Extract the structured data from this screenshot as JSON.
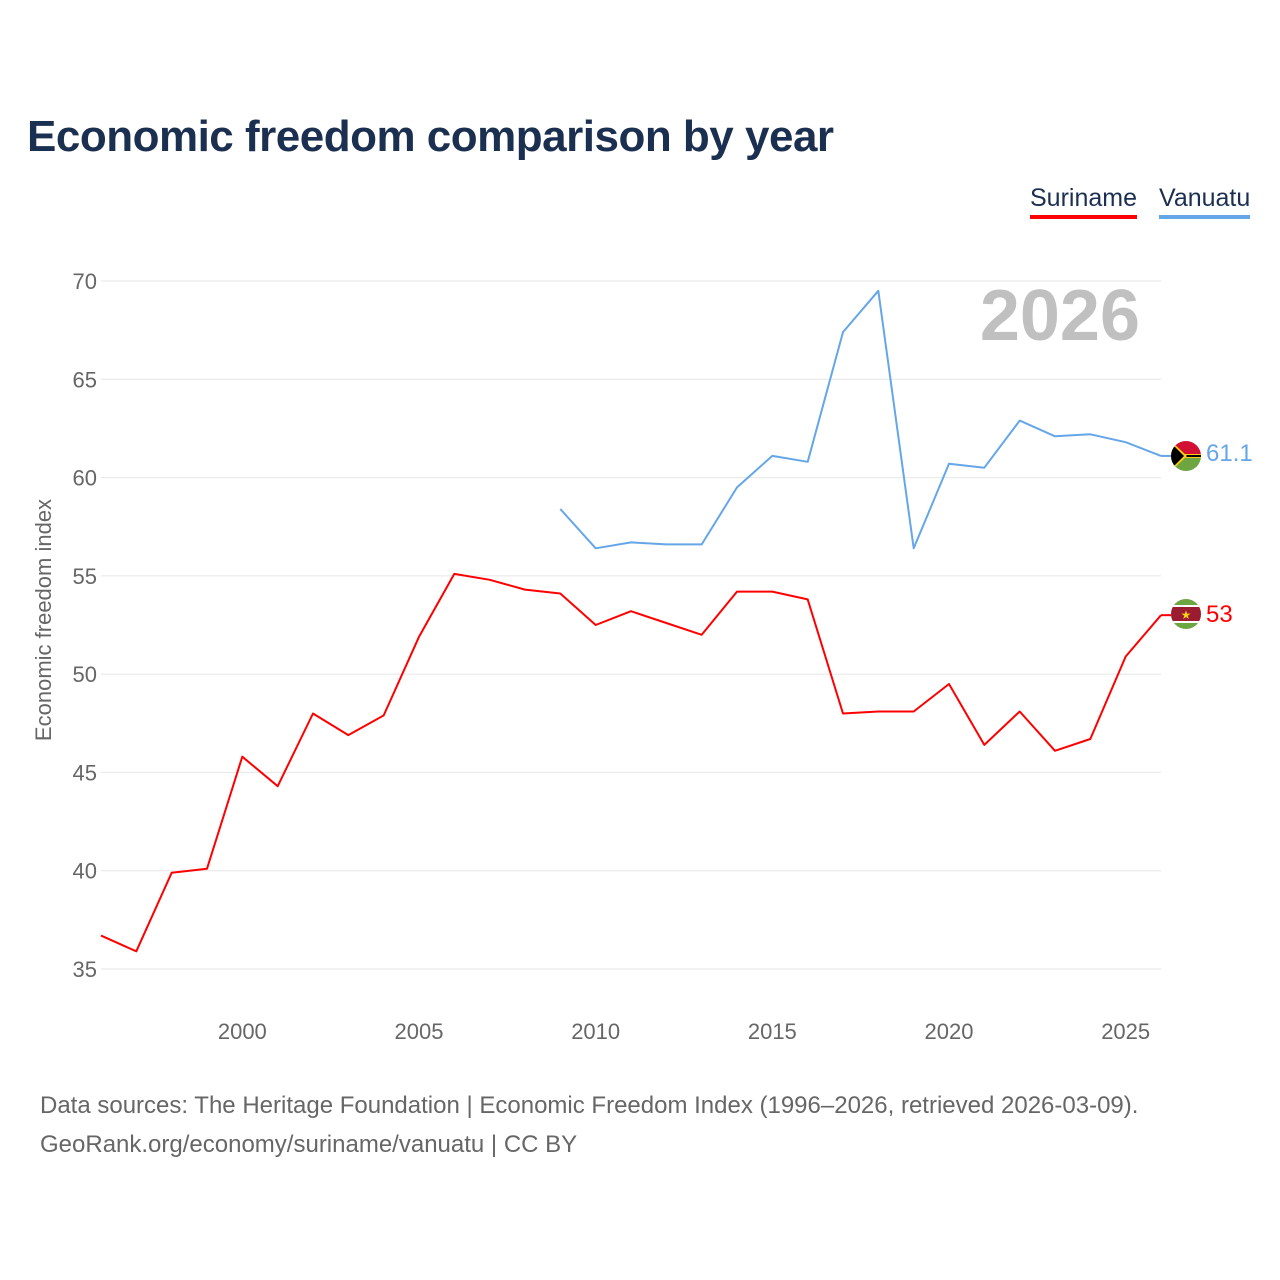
{
  "title": "Economic freedom comparison by year",
  "legend": [
    {
      "label": "Suriname",
      "color": "#ff0000"
    },
    {
      "label": "Vanuatu",
      "color": "#64a6e8"
    }
  ],
  "year_watermark": "2026",
  "footer": {
    "line1": "Data sources: The Heritage Foundation | Economic Freedom Index (1996–2026, retrieved 2026-03-09).",
    "line2": "GeoRank.org/economy/suriname/vanuatu | CC BY"
  },
  "chart_data": {
    "type": "line",
    "title": "Economic freedom comparison by year",
    "xlabel": "",
    "ylabel": "Economic freedom index",
    "xlim": [
      1996,
      2026
    ],
    "ylim": [
      33,
      71
    ],
    "xticks": [
      2000,
      2005,
      2010,
      2015,
      2020,
      2025
    ],
    "yticks": [
      35,
      40,
      45,
      50,
      55,
      60,
      65,
      70
    ],
    "grid": true,
    "legend_position": "top-right",
    "series": [
      {
        "name": "Suriname",
        "color": "#ff0000",
        "end_label": "53",
        "flag": "suriname-flag",
        "x": [
          1996,
          1997,
          1998,
          1999,
          2000,
          2001,
          2002,
          2003,
          2004,
          2005,
          2006,
          2007,
          2008,
          2009,
          2010,
          2011,
          2012,
          2013,
          2014,
          2015,
          2016,
          2017,
          2018,
          2019,
          2020,
          2021,
          2022,
          2023,
          2024,
          2025,
          2026
        ],
        "values": [
          36.7,
          35.9,
          39.9,
          40.1,
          45.8,
          44.3,
          48.0,
          46.9,
          47.9,
          51.9,
          55.1,
          54.8,
          54.3,
          54.1,
          52.5,
          53.2,
          52.6,
          52.0,
          54.2,
          54.2,
          53.8,
          48.0,
          48.1,
          48.1,
          49.5,
          46.4,
          48.1,
          46.1,
          46.7,
          50.9,
          53.0
        ]
      },
      {
        "name": "Vanuatu",
        "color": "#64a6e8",
        "end_label": "61.1",
        "flag": "vanuatu-flag",
        "x": [
          2009,
          2010,
          2011,
          2012,
          2013,
          2014,
          2015,
          2016,
          2017,
          2018,
          2019,
          2020,
          2021,
          2022,
          2023,
          2024,
          2025,
          2026
        ],
        "values": [
          58.4,
          56.4,
          56.7,
          56.6,
          56.6,
          59.5,
          61.1,
          60.8,
          67.4,
          69.5,
          56.4,
          60.7,
          60.5,
          62.9,
          62.1,
          62.2,
          61.8,
          61.1
        ]
      }
    ]
  }
}
